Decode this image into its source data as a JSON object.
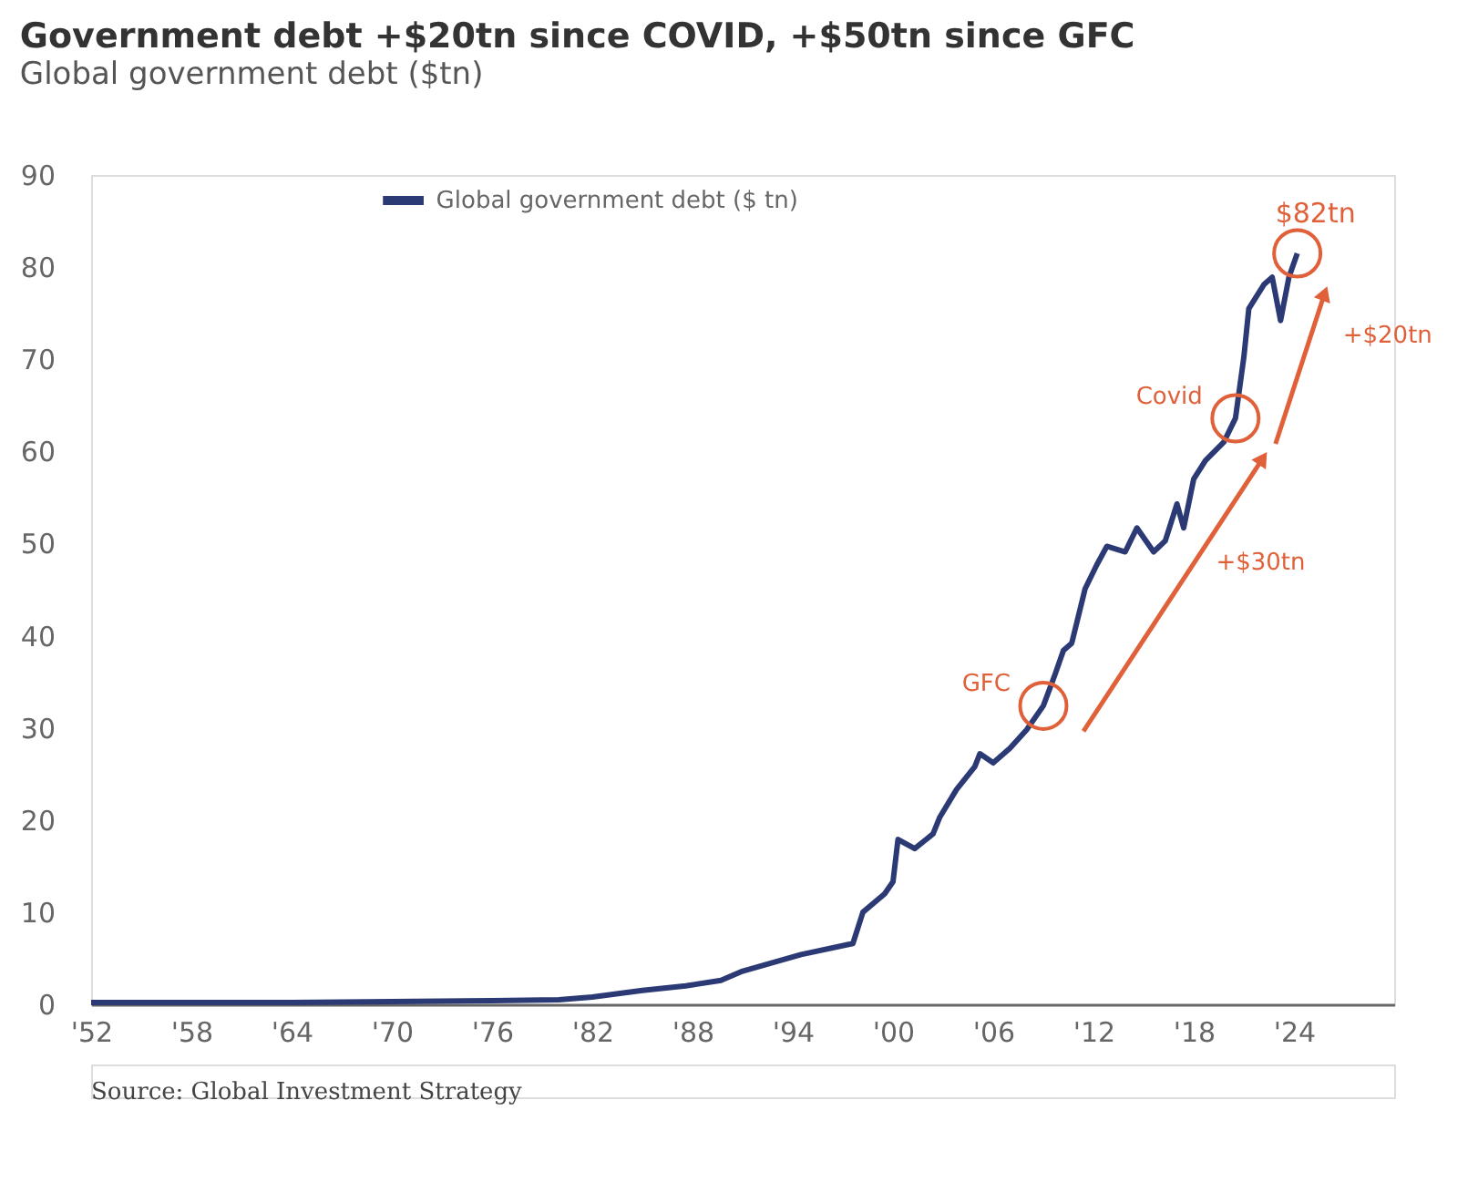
{
  "chart_data": {
    "type": "line",
    "title": "Government debt +$20tn since COVID, +$50tn since GFC",
    "subtitle": "Global government debt ($tn)",
    "x": [
      1952,
      1958,
      1964,
      1970,
      1976,
      1980,
      1982,
      1985,
      1987.6,
      1989.7,
      1991,
      1994.5,
      1997.6,
      1998.2,
      1999.5,
      2000,
      2000.3,
      2001.3,
      2002.4,
      2002.8,
      2003.8,
      2004.9,
      2005.2,
      2006,
      2007,
      2008,
      2009,
      2009.7,
      2010.2,
      2010.7,
      2011.5,
      2012.2,
      2012.8,
      2013.9,
      2014.6,
      2015.6,
      2016.3,
      2017,
      2017.4,
      2018,
      2018.7,
      2019.8,
      2020.5,
      2021,
      2021.3,
      2022.2,
      2022.7,
      2023.2,
      2023.7,
      2024.2
    ],
    "series": [
      {
        "name": "Global government debt ($ tn)",
        "color": "#2b3a74",
        "values": [
          0.2,
          0.2,
          0.2,
          0.3,
          0.4,
          0.5,
          0.8,
          1.5,
          2.0,
          2.6,
          3.6,
          5.4,
          6.6,
          10,
          12,
          13.3,
          17.9,
          16.9,
          18.5,
          20.3,
          23.3,
          25.8,
          27.2,
          26.2,
          27.8,
          29.8,
          32.4,
          35.8,
          38.4,
          39.2,
          45.1,
          47.7,
          49.7,
          49.1,
          51.7,
          49.1,
          50.3,
          54.3,
          51.7,
          57,
          59,
          61,
          63.6,
          70.2,
          75.5,
          78.1,
          78.9,
          74.2,
          78.9,
          81.5
        ]
      }
    ],
    "xlim": [
      1952,
      2030
    ],
    "xticks": [
      {
        "value": 1952,
        "label": "'52"
      },
      {
        "value": 1958,
        "label": "'58"
      },
      {
        "value": 1964,
        "label": "'64"
      },
      {
        "value": 1970,
        "label": "'70"
      },
      {
        "value": 1976,
        "label": "'76"
      },
      {
        "value": 1982,
        "label": "'82"
      },
      {
        "value": 1988,
        "label": "'88"
      },
      {
        "value": 1994,
        "label": "'94"
      },
      {
        "value": 2000,
        "label": "'00"
      },
      {
        "value": 2006,
        "label": "'06"
      },
      {
        "value": 2012,
        "label": "'12"
      },
      {
        "value": 2018,
        "label": "'18"
      },
      {
        "value": 2024,
        "label": "'24"
      }
    ],
    "ylim": [
      0,
      90
    ],
    "yticks": [
      0,
      10,
      20,
      30,
      40,
      50,
      60,
      70,
      80,
      90
    ],
    "grid": false,
    "legend": "top",
    "marker": "none",
    "line_style": "solid",
    "annotations": [
      {
        "text": "GFC",
        "x": 2009,
        "y": 32.4
      },
      "+$30tn",
      {
        "text": "Covid",
        "x": 2020.5,
        "y": 63.6
      },
      "+$20tn",
      {
        "text": "$82tn",
        "x": 2024.2,
        "y": 81.5
      },
      "Source: Global Investment Strategy"
    ]
  }
}
